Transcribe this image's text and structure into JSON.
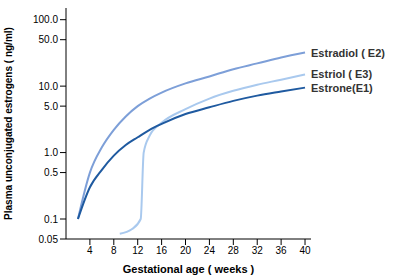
{
  "chart_data": {
    "type": "line",
    "x_label": "Gestational age ( weeks )",
    "y_label": "Plasma unconjugated estrogens ( ng/ml)",
    "log": "y",
    "grid": false,
    "xlim": [
      0,
      41
    ],
    "xticks": [
      4,
      8,
      12,
      16,
      20,
      24,
      28,
      32,
      36,
      40
    ],
    "ylim": [
      0.05,
      150
    ],
    "yticks": [
      0.05,
      0.1,
      0.5,
      {
        "value": 1,
        "label": "1.0"
      },
      {
        "value": 5,
        "label": "5.0"
      },
      {
        "value": 10,
        "label": "10.0"
      },
      {
        "value": 50,
        "label": "50.0"
      },
      {
        "value": 100,
        "label": "100.0"
      }
    ],
    "series": [
      {
        "name": "Estradiol ( E2)",
        "color": "#7d9fd8",
        "x": [
          2,
          4,
          6,
          8,
          10,
          12,
          14,
          16,
          20,
          24,
          28,
          32,
          36,
          40
        ],
        "values": [
          0.1,
          0.5,
          1.2,
          2.2,
          3.5,
          5,
          6.5,
          8,
          11,
          14,
          18,
          22,
          27,
          32
        ]
      },
      {
        "name": "Estriol ( E3)",
        "color": "#a9c9ee",
        "x": [
          9,
          11,
          12.5,
          13,
          14,
          16,
          20,
          24,
          28,
          32,
          36,
          40
        ],
        "values": [
          0.06,
          0.07,
          0.1,
          1,
          1.8,
          2.8,
          4.5,
          6.5,
          8.5,
          10.5,
          12.5,
          15
        ]
      },
      {
        "name": "Estrone(E1)",
        "color": "#1f5aa0",
        "x": [
          2,
          4,
          6,
          8,
          10,
          12,
          14,
          16,
          20,
          24,
          28,
          32,
          36,
          40
        ],
        "values": [
          0.1,
          0.3,
          0.55,
          0.9,
          1.3,
          1.7,
          2.2,
          2.7,
          3.8,
          4.8,
          6,
          7.2,
          8.3,
          9.5
        ]
      }
    ]
  }
}
